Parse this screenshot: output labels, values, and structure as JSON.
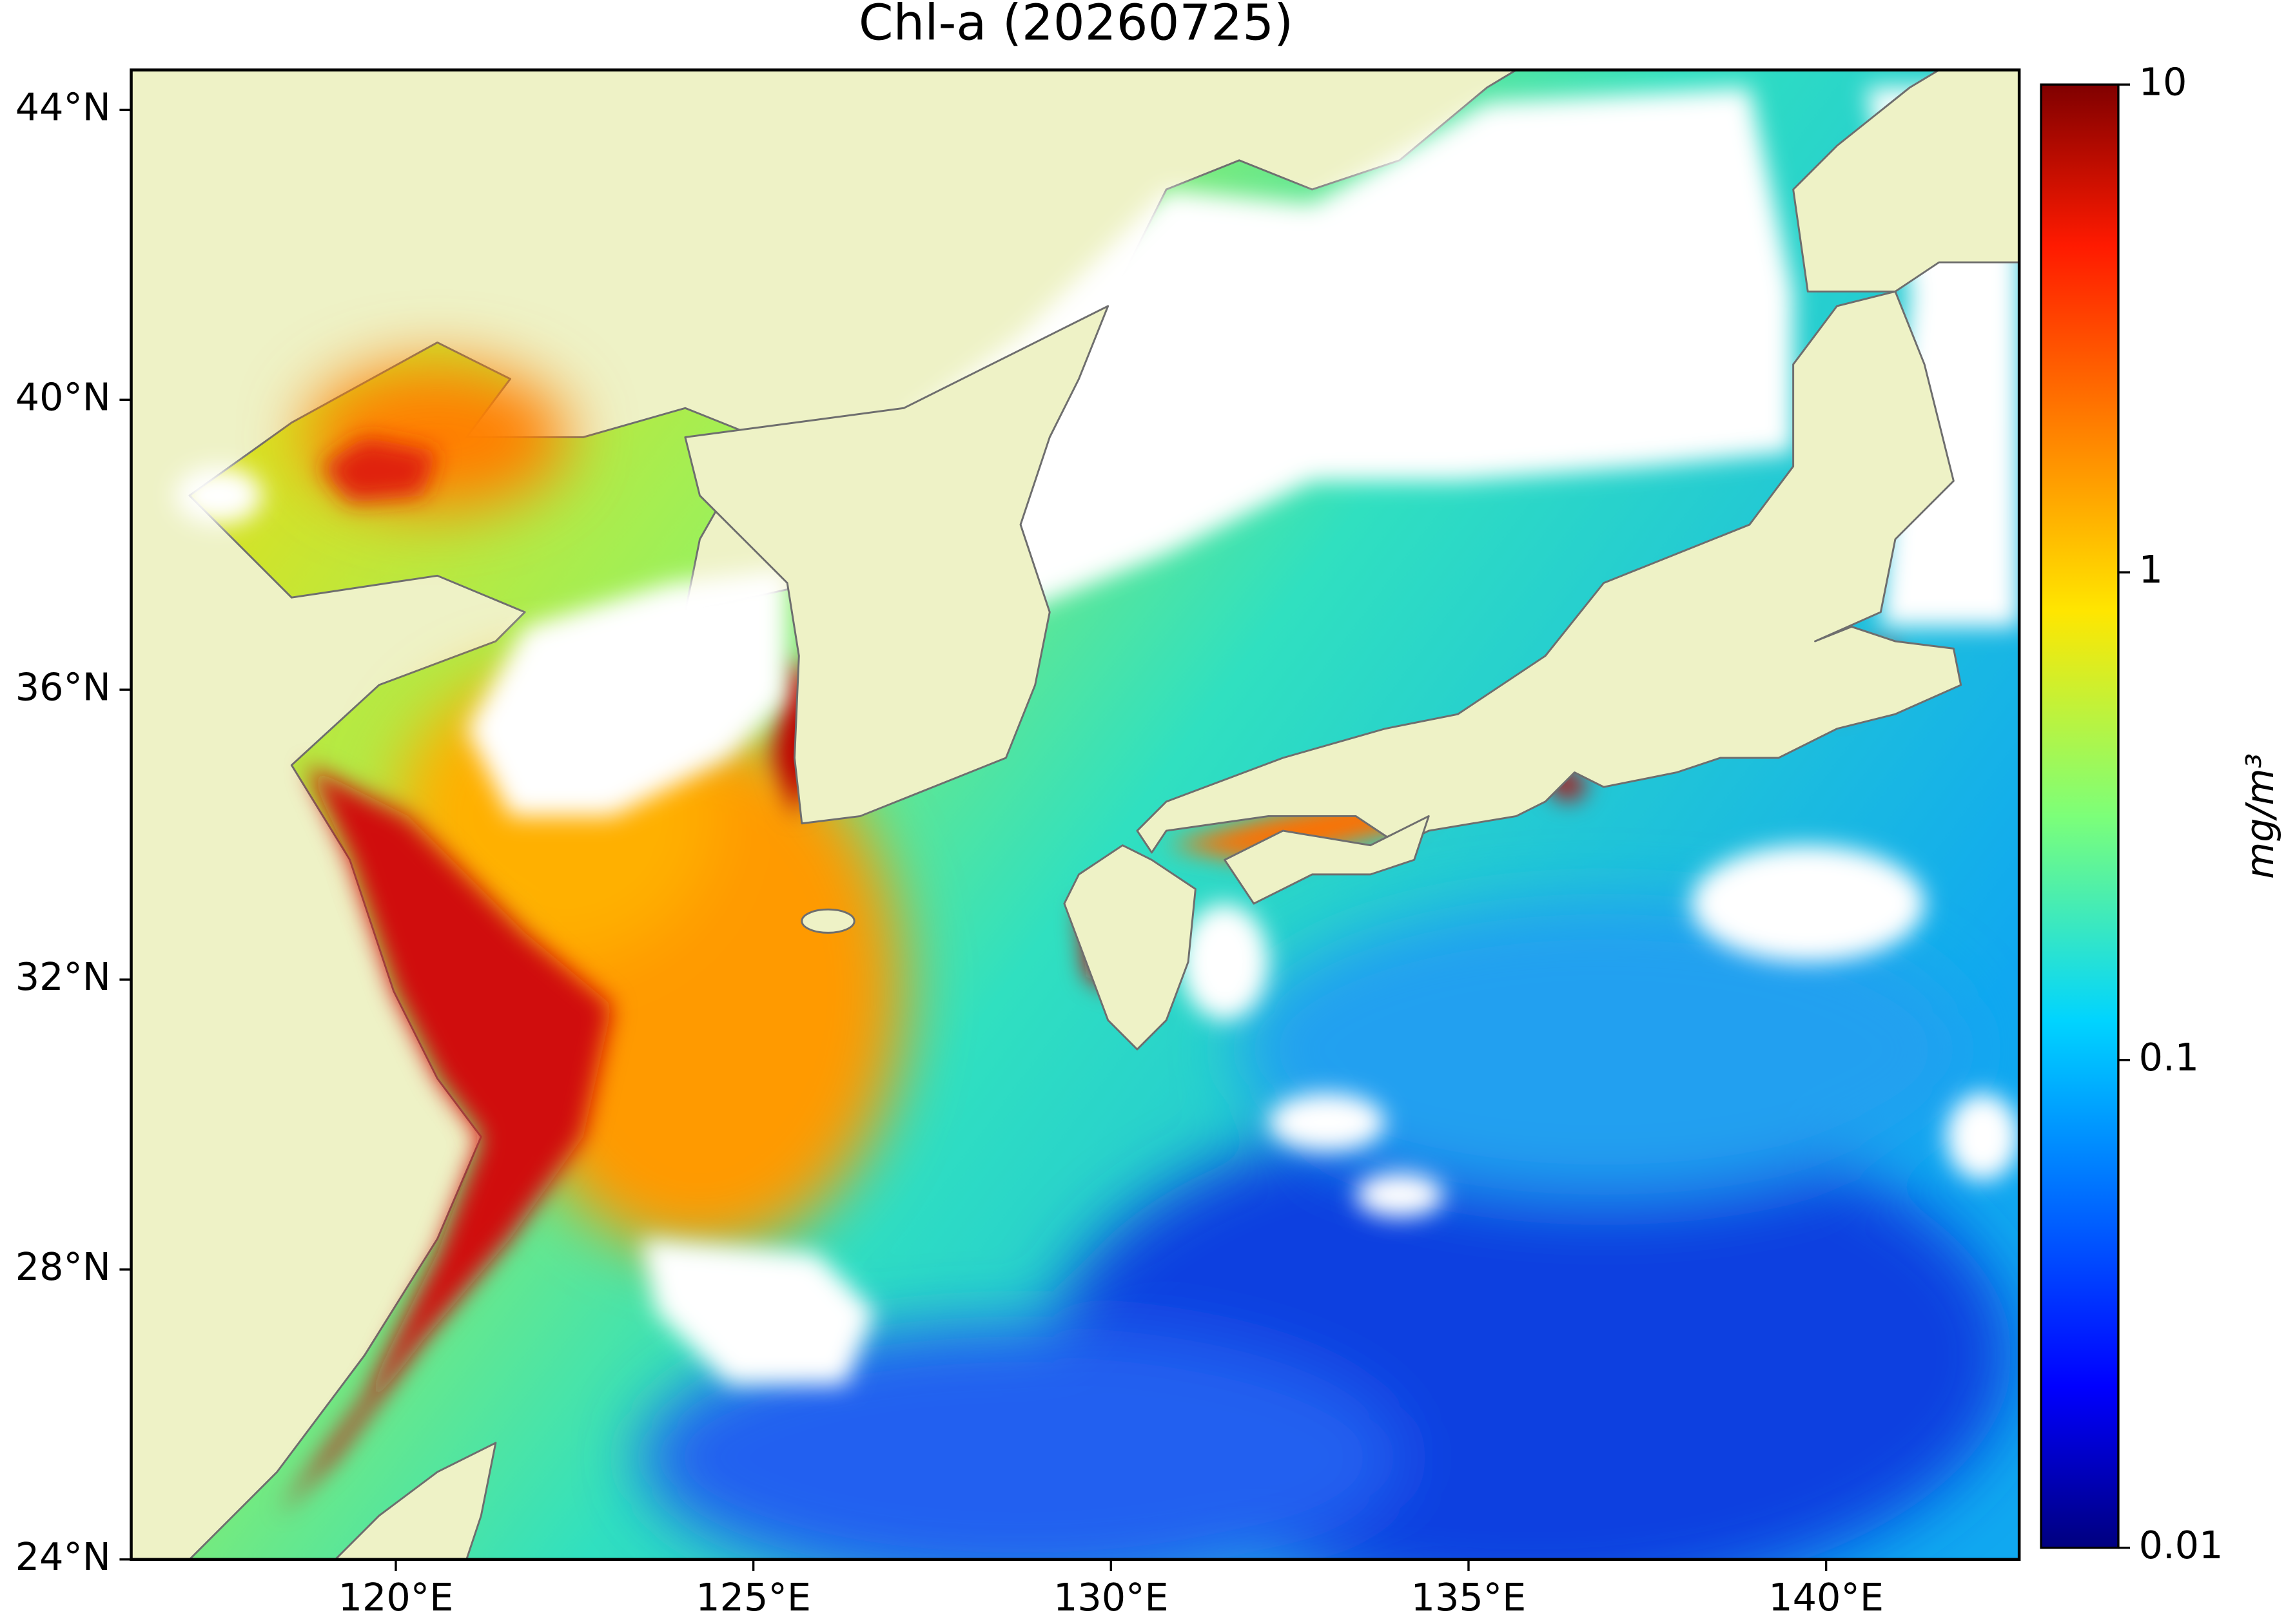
{
  "chart_data": {
    "type": "map",
    "title": "Chl-a (20260725)",
    "xlim": [
      116.3,
      142.7
    ],
    "ylim": [
      24,
      44.55
    ],
    "xticks": [
      {
        "value": 120,
        "label": "120°E"
      },
      {
        "value": 125,
        "label": "125°E"
      },
      {
        "value": 130,
        "label": "130°E"
      },
      {
        "value": 135,
        "label": "135°E"
      },
      {
        "value": 140,
        "label": "140°E"
      }
    ],
    "yticks": [
      {
        "value": 24,
        "label": "24°N"
      },
      {
        "value": 28,
        "label": "28°N"
      },
      {
        "value": 32,
        "label": "32°N"
      },
      {
        "value": 36,
        "label": "36°N"
      },
      {
        "value": 40,
        "label": "40°N"
      },
      {
        "value": 44,
        "label": "44°N"
      }
    ],
    "colorbar": {
      "label": "mg/m³",
      "lim": [
        0.01,
        10
      ],
      "ticks": [
        0.01,
        0.1,
        1,
        10
      ],
      "log": true,
      "colormap": "jet"
    }
  }
}
